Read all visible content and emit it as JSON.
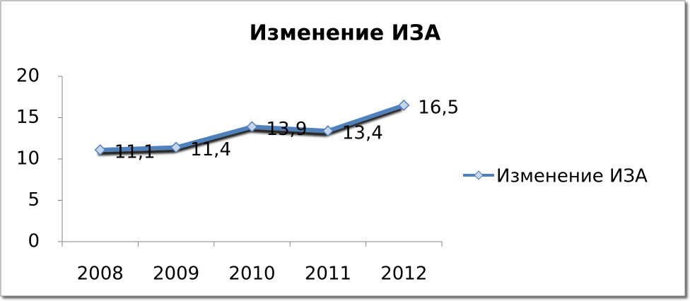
{
  "chart_data": {
    "type": "line",
    "title": "Изменение ИЗА",
    "categories": [
      "2008",
      "2009",
      "2010",
      "2011",
      "2012"
    ],
    "series": [
      {
        "name": "Изменение ИЗА",
        "color": "#4f81bd",
        "values": [
          11.1,
          11.4,
          13.9,
          13.4,
          16.5
        ],
        "value_labels": [
          "11,1",
          "11,4",
          "13,9",
          "13,4",
          "16,5"
        ]
      }
    ],
    "ylim": [
      0,
      20
    ],
    "yticks": [
      0,
      5,
      10,
      15,
      20
    ],
    "grid": false,
    "legend": "right"
  }
}
